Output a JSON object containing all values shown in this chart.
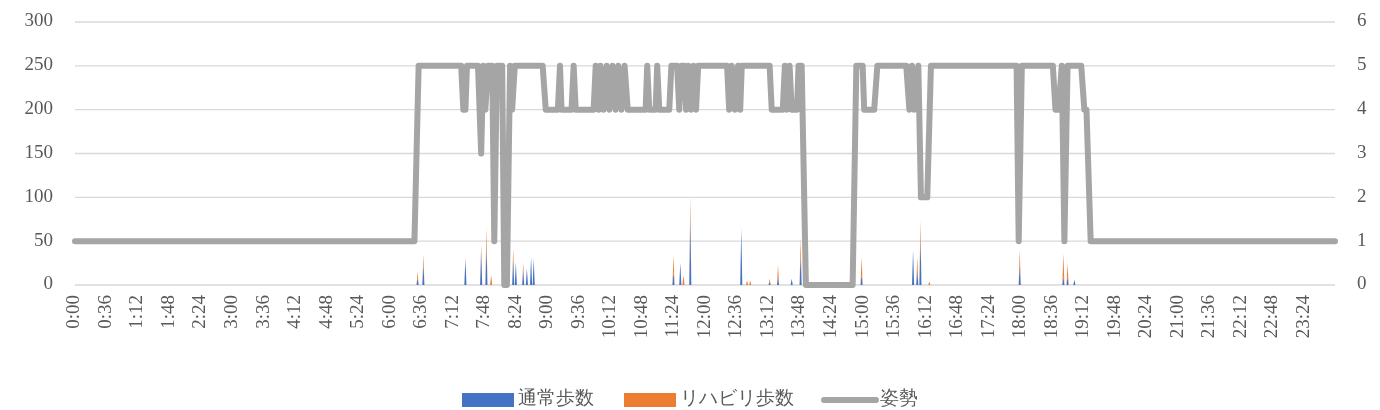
{
  "chart_data": {
    "type": "area",
    "stacked": true,
    "grid": "y",
    "legend": "bottom",
    "xlim": [
      0,
      23.98
    ],
    "xticks": [
      {
        "value": 0,
        "label": "0:00"
      },
      {
        "value": 0.6,
        "label": "0:36"
      },
      {
        "value": 1.2,
        "label": "1:12"
      },
      {
        "value": 1.8,
        "label": "1:48"
      },
      {
        "value": 2.4,
        "label": "2:24"
      },
      {
        "value": 3,
        "label": "3:00"
      },
      {
        "value": 3.6,
        "label": "3:36"
      },
      {
        "value": 4.2,
        "label": "4:12"
      },
      {
        "value": 4.8,
        "label": "4:48"
      },
      {
        "value": 5.4,
        "label": "5:24"
      },
      {
        "value": 6,
        "label": "6:00"
      },
      {
        "value": 6.6,
        "label": "6:36"
      },
      {
        "value": 7.2,
        "label": "7:12"
      },
      {
        "value": 7.8,
        "label": "7:48"
      },
      {
        "value": 8.4,
        "label": "8:24"
      },
      {
        "value": 9,
        "label": "9:00"
      },
      {
        "value": 9.6,
        "label": "9:36"
      },
      {
        "value": 10.2,
        "label": "10:12"
      },
      {
        "value": 10.8,
        "label": "10:48"
      },
      {
        "value": 11.4,
        "label": "11:24"
      },
      {
        "value": 12,
        "label": "12:00"
      },
      {
        "value": 12.6,
        "label": "12:36"
      },
      {
        "value": 13.2,
        "label": "13:12"
      },
      {
        "value": 13.8,
        "label": "13:48"
      },
      {
        "value": 14.4,
        "label": "14:24"
      },
      {
        "value": 15,
        "label": "15:00"
      },
      {
        "value": 15.6,
        "label": "15:36"
      },
      {
        "value": 16.2,
        "label": "16:12"
      },
      {
        "value": 16.8,
        "label": "16:48"
      },
      {
        "value": 17.4,
        "label": "17:24"
      },
      {
        "value": 18,
        "label": "18:00"
      },
      {
        "value": 18.6,
        "label": "18:36"
      },
      {
        "value": 19.2,
        "label": "19:12"
      },
      {
        "value": 19.8,
        "label": "19:48"
      },
      {
        "value": 20.4,
        "label": "20:24"
      },
      {
        "value": 21,
        "label": "21:00"
      },
      {
        "value": 21.6,
        "label": "21:36"
      },
      {
        "value": 22.2,
        "label": "22:12"
      },
      {
        "value": 22.8,
        "label": "22:48"
      },
      {
        "value": 23.4,
        "label": "23:24"
      }
    ],
    "ylim": [
      0,
      300
    ],
    "yticks": [
      0,
      50,
      100,
      150,
      200,
      250,
      300
    ],
    "y2lim": [
      0,
      6
    ],
    "y2ticks": [
      0,
      1,
      2,
      3,
      4,
      5,
      6
    ],
    "x": [
      0,
      6.5,
      6.52,
      6.54,
      6.61,
      6.63,
      6.65,
      7.41,
      7.43,
      7.45,
      7.71,
      7.73,
      7.75,
      7.81,
      7.83,
      7.85,
      7.9,
      7.92,
      7.94,
      8.32,
      8.34,
      8.36,
      8.37,
      8.39,
      8.41,
      8.51,
      8.53,
      8.55,
      8.58,
      8.6,
      8.62,
      8.66,
      8.68,
      8.7,
      8.71,
      8.73,
      8.75,
      11.37,
      11.39,
      11.41,
      11.5,
      11.52,
      11.54,
      11.56,
      11.58,
      11.6,
      11.69,
      11.71,
      11.73,
      12.66,
      12.68,
      12.7,
      12.77,
      12.79,
      12.81,
      12.83,
      12.85,
      12.87,
      13.2,
      13.22,
      13.24,
      13.36,
      13.38,
      13.4,
      13.62,
      13.64,
      13.66,
      13.79,
      13.81,
      13.83,
      14.95,
      14.97,
      14.99,
      15.93,
      15.95,
      15.97,
      16.01,
      16.03,
      16.05,
      16.07,
      16.09,
      16.11,
      16.24,
      16.26,
      16.28,
      17.96,
      17.98,
      18.0,
      18.79,
      18.81,
      18.83,
      18.87,
      18.89,
      18.91,
      19.0,
      19.02,
      19.04,
      23.98
    ],
    "series": [
      {
        "name": "通常歩数",
        "color": "#4472c4",
        "values": [
          0,
          0,
          8,
          0,
          0,
          25,
          0,
          0,
          30,
          0,
          0,
          40,
          0,
          0,
          45,
          0,
          0,
          0,
          0,
          0,
          30,
          0,
          0,
          26,
          0,
          0,
          17,
          0,
          0,
          19,
          0,
          0,
          32,
          0,
          0,
          30,
          0,
          0,
          15,
          0,
          0,
          25,
          0,
          0,
          0,
          0,
          0,
          80,
          0,
          0,
          65,
          0,
          0,
          0,
          0,
          0,
          0,
          0,
          0,
          4,
          0,
          0,
          10,
          0,
          0,
          7,
          0,
          0,
          35,
          0,
          0,
          12,
          0,
          0,
          40,
          0,
          0,
          18,
          0,
          0,
          55,
          0,
          0,
          0,
          0,
          0,
          25,
          0,
          0,
          10,
          0,
          0,
          10,
          0,
          0,
          6,
          0,
          0
        ]
      },
      {
        "name": "リハビリ歩数",
        "color": "#ed7d31",
        "values": [
          0,
          0,
          7,
          0,
          0,
          10,
          0,
          0,
          2,
          0,
          0,
          6,
          0,
          0,
          21,
          0,
          0,
          11,
          0,
          0,
          12,
          0,
          0,
          0,
          0,
          0,
          8,
          0,
          0,
          0,
          0,
          0,
          0,
          0,
          0,
          0,
          0,
          0,
          19,
          0,
          0,
          0,
          0,
          0,
          11,
          0,
          0,
          20,
          0,
          0,
          0,
          0,
          0,
          5,
          0,
          0,
          5,
          0,
          0,
          3,
          0,
          0,
          13,
          0,
          0,
          0,
          0,
          0,
          19,
          0,
          0,
          20,
          0,
          0,
          0,
          0,
          0,
          14,
          0,
          0,
          19,
          0,
          0,
          4,
          0,
          0,
          15,
          0,
          0,
          26,
          0,
          0,
          15,
          0,
          0,
          0,
          0,
          0
        ]
      },
      {
        "name": "姿勢",
        "type": "line",
        "axis": "y2",
        "color": "#a5a5a5",
        "line_style": "solid",
        "marker": "none",
        "x": [
          0,
          6.46,
          6.54,
          7.35,
          7.39,
          7.43,
          7.46,
          7.67,
          7.73,
          7.77,
          7.81,
          7.86,
          7.94,
          7.98,
          8.03,
          8.13,
          8.17,
          8.22,
          8.28,
          8.32,
          8.37,
          8.9,
          8.96,
          9.19,
          9.23,
          9.26,
          9.45,
          9.49,
          9.53,
          9.87,
          9.91,
          9.97,
          10.0,
          10.06,
          10.12,
          10.17,
          10.23,
          10.29,
          10.34,
          10.4,
          10.46,
          10.52,
          10.86,
          10.89,
          10.93,
          11.05,
          11.08,
          11.12,
          11.31,
          11.35,
          11.46,
          11.5,
          11.54,
          11.6,
          11.63,
          11.67,
          11.73,
          11.77,
          11.82,
          11.86,
          12.41,
          12.45,
          12.5,
          12.56,
          12.62,
          12.66,
          12.69,
          13.22,
          13.26,
          13.47,
          13.51,
          13.55,
          13.6,
          13.64,
          13.74,
          13.77,
          13.83,
          13.91,
          14.8,
          14.87,
          14.99,
          15.02,
          15.21,
          15.27,
          15.82,
          15.88,
          15.93,
          15.97,
          16.05,
          16.1,
          16.22,
          16.29,
          17.92,
          17.96,
          18.02,
          18.61,
          18.66,
          18.72,
          18.78,
          18.83,
          18.89,
          19.15,
          19.21,
          19.25,
          19.33,
          23.98
        ],
        "values": [
          1,
          1,
          5,
          5,
          4,
          4,
          5,
          5,
          3,
          5,
          4,
          5,
          5,
          1,
          5,
          5,
          0,
          0,
          5,
          4,
          5,
          5,
          4,
          4,
          5,
          4,
          4,
          5,
          4,
          4,
          5,
          4,
          5,
          4,
          5,
          4,
          5,
          4,
          5,
          4,
          5,
          4,
          4,
          5,
          4,
          4,
          5,
          4,
          4,
          5,
          5,
          4,
          5,
          5,
          4,
          5,
          4,
          5,
          4,
          5,
          5,
          4,
          5,
          4,
          5,
          4,
          5,
          5,
          4,
          4,
          5,
          4,
          5,
          4,
          4,
          5,
          5,
          0,
          0,
          5,
          5,
          4,
          4,
          5,
          5,
          4,
          5,
          4,
          5,
          2,
          2,
          5,
          5,
          1,
          5,
          5,
          4,
          4,
          5,
          1,
          5,
          5,
          4,
          4,
          1,
          1
        ]
      }
    ]
  }
}
